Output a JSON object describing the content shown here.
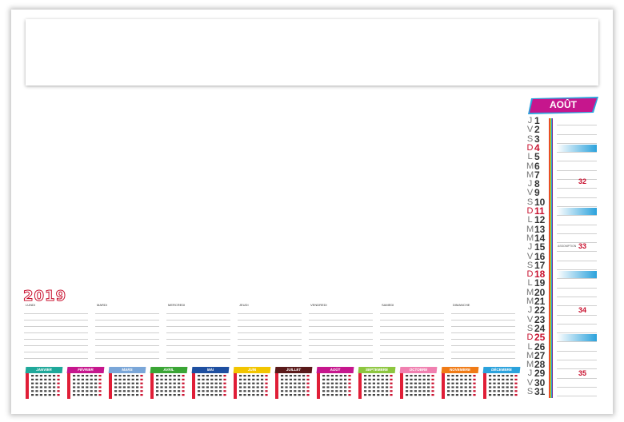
{
  "year": "2019",
  "weekdays": [
    "LUNDI",
    "MARDI",
    "MERCREDI",
    "JEUDI",
    "VENDREDI",
    "SAMEDI",
    "DIMANCHE"
  ],
  "months": [
    {
      "name": "JANVIER",
      "color": "#1fa89a"
    },
    {
      "name": "FÉVRIER",
      "color": "#c6168d"
    },
    {
      "name": "MARS",
      "color": "#7aa6d8"
    },
    {
      "name": "AVRIL",
      "color": "#3aa535"
    },
    {
      "name": "MAI",
      "color": "#1e4fa0"
    },
    {
      "name": "JUIN",
      "color": "#f2c500"
    },
    {
      "name": "JUILLET",
      "color": "#5a1a1a"
    },
    {
      "name": "AOÛT",
      "color": "#c6168d"
    },
    {
      "name": "SEPTEMBRE",
      "color": "#8dc63f"
    },
    {
      "name": "OCTOBRE",
      "color": "#f080b0"
    },
    {
      "name": "NOVEMBRE",
      "color": "#f07b16"
    },
    {
      "name": "DÉCEMBRE",
      "color": "#2ba2dc"
    }
  ],
  "current_month": {
    "name": "AOÛT",
    "color": "#c6168d"
  },
  "days": [
    {
      "l": "J",
      "n": "1"
    },
    {
      "l": "V",
      "n": "2"
    },
    {
      "l": "S",
      "n": "3"
    },
    {
      "l": "D",
      "n": "4"
    },
    {
      "l": "L",
      "n": "5"
    },
    {
      "l": "M",
      "n": "6"
    },
    {
      "l": "M",
      "n": "7"
    },
    {
      "l": "J",
      "n": "8"
    },
    {
      "l": "V",
      "n": "9"
    },
    {
      "l": "S",
      "n": "10"
    },
    {
      "l": "D",
      "n": "11"
    },
    {
      "l": "L",
      "n": "12"
    },
    {
      "l": "M",
      "n": "13"
    },
    {
      "l": "M",
      "n": "14"
    },
    {
      "l": "J",
      "n": "15"
    },
    {
      "l": "V",
      "n": "16"
    },
    {
      "l": "S",
      "n": "17"
    },
    {
      "l": "D",
      "n": "18"
    },
    {
      "l": "L",
      "n": "19"
    },
    {
      "l": "M",
      "n": "20"
    },
    {
      "l": "M",
      "n": "21"
    },
    {
      "l": "J",
      "n": "22"
    },
    {
      "l": "V",
      "n": "23"
    },
    {
      "l": "S",
      "n": "24"
    },
    {
      "l": "D",
      "n": "25"
    },
    {
      "l": "L",
      "n": "26"
    },
    {
      "l": "M",
      "n": "27"
    },
    {
      "l": "M",
      "n": "28"
    },
    {
      "l": "J",
      "n": "29"
    },
    {
      "l": "V",
      "n": "30"
    },
    {
      "l": "S",
      "n": "31"
    }
  ],
  "week_numbers": [
    "32",
    "33",
    "34",
    "35"
  ],
  "holiday_note": "ASSOMPTION"
}
